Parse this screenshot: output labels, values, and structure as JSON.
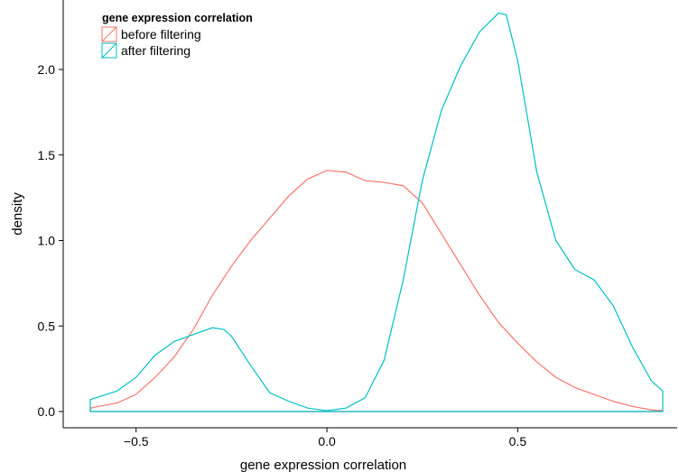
{
  "chart_data": {
    "type": "line",
    "title": "",
    "xlabel": "gene expression correlation",
    "ylabel": "density",
    "xlim": [
      -0.62,
      0.88
    ],
    "ylim": [
      0.0,
      2.35
    ],
    "x_ticks": [
      -0.5,
      0.0,
      0.5
    ],
    "x_tick_labels": [
      "−0.5",
      "0.0",
      "0.5"
    ],
    "y_ticks": [
      0.0,
      0.5,
      1.0,
      1.5,
      2.0
    ],
    "y_tick_labels": [
      "0.0",
      "0.5",
      "1.0",
      "1.5",
      "2.0"
    ],
    "grid": false,
    "legend": {
      "title": "gene expression correlation",
      "position": "top-left",
      "entries": [
        "before filtering",
        "after filtering"
      ]
    },
    "series": [
      {
        "name": "before filtering",
        "color": "#F8766D",
        "x": [
          -0.62,
          -0.55,
          -0.5,
          -0.45,
          -0.4,
          -0.35,
          -0.3,
          -0.25,
          -0.2,
          -0.15,
          -0.1,
          -0.05,
          0.0,
          0.05,
          0.1,
          0.15,
          0.2,
          0.25,
          0.3,
          0.35,
          0.4,
          0.45,
          0.5,
          0.55,
          0.6,
          0.65,
          0.7,
          0.75,
          0.8,
          0.85,
          0.88
        ],
        "y": [
          0.02,
          0.05,
          0.1,
          0.2,
          0.32,
          0.48,
          0.68,
          0.85,
          1.0,
          1.13,
          1.26,
          1.36,
          1.41,
          1.4,
          1.35,
          1.34,
          1.32,
          1.22,
          1.04,
          0.86,
          0.68,
          0.52,
          0.4,
          0.29,
          0.2,
          0.14,
          0.1,
          0.06,
          0.03,
          0.01,
          0.005
        ]
      },
      {
        "name": "after filtering",
        "color": "#00BFC4",
        "x": [
          -0.62,
          -0.55,
          -0.5,
          -0.45,
          -0.4,
          -0.35,
          -0.3,
          -0.27,
          -0.25,
          -0.2,
          -0.15,
          -0.1,
          -0.05,
          0.0,
          0.05,
          0.1,
          0.15,
          0.2,
          0.25,
          0.3,
          0.35,
          0.4,
          0.45,
          0.47,
          0.5,
          0.55,
          0.6,
          0.65,
          0.7,
          0.75,
          0.8,
          0.85,
          0.88
        ],
        "y": [
          0.07,
          0.12,
          0.2,
          0.33,
          0.41,
          0.45,
          0.49,
          0.48,
          0.44,
          0.27,
          0.11,
          0.06,
          0.02,
          0.005,
          0.02,
          0.08,
          0.3,
          0.77,
          1.35,
          1.76,
          2.02,
          2.22,
          2.33,
          2.32,
          2.05,
          1.4,
          1.0,
          0.83,
          0.77,
          0.62,
          0.38,
          0.18,
          0.12
        ]
      }
    ]
  }
}
